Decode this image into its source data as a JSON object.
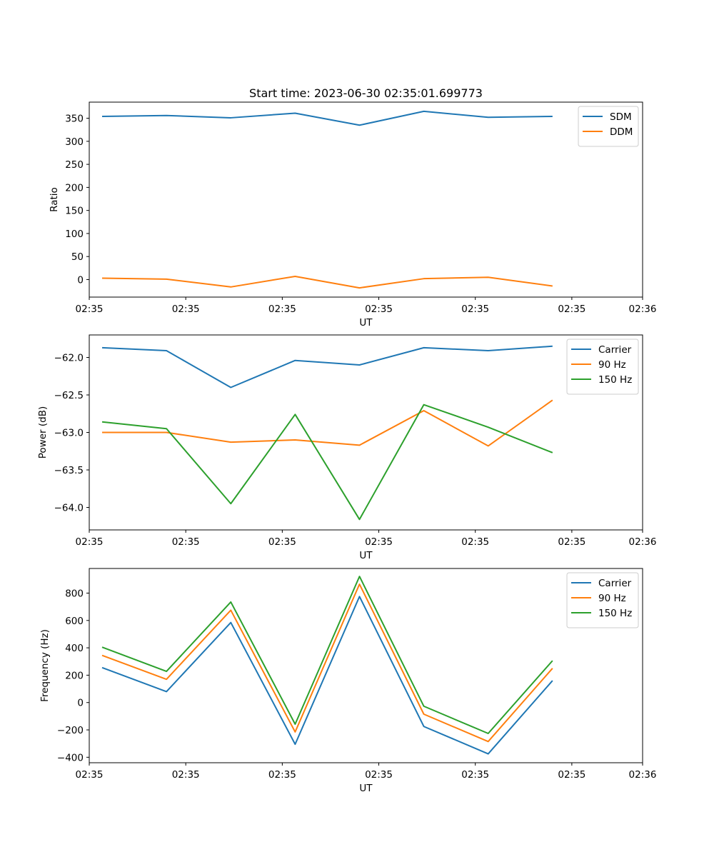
{
  "figure": {
    "title": "Start time: 2023-06-30 02:35:01.699773"
  },
  "chart_data": [
    {
      "type": "line",
      "xlabel": "UT",
      "ylabel": "Ratio",
      "x": [
        1,
        2,
        3,
        4,
        5,
        6,
        7,
        8
      ],
      "xlim": [
        0.8,
        9.4
      ],
      "xticks": [
        0.8,
        2.3,
        3.8,
        5.3,
        6.8,
        8.3,
        9.4
      ],
      "xtick_labels": [
        "02:35",
        "02:35",
        "02:35",
        "02:35",
        "02:35",
        "02:35",
        "02:36"
      ],
      "ylim": [
        -38,
        385
      ],
      "yticks": [
        0,
        50,
        100,
        150,
        200,
        250,
        300,
        350
      ],
      "ytick_labels": [
        "0",
        "50",
        "100",
        "150",
        "200",
        "250",
        "300",
        "350"
      ],
      "legend": "top-right",
      "grid": false,
      "series": [
        {
          "name": "SDM",
          "color": "#1f77b4",
          "values": [
            354,
            356,
            351,
            361,
            335,
            365,
            352,
            354
          ]
        },
        {
          "name": "DDM",
          "color": "#ff7f0e",
          "values": [
            3,
            1,
            -16,
            7,
            -18,
            2,
            5,
            -14
          ]
        }
      ]
    },
    {
      "type": "line",
      "xlabel": "UT",
      "ylabel": "Power (dB)",
      "x": [
        1,
        2,
        3,
        4,
        5,
        6,
        7,
        8
      ],
      "xlim": [
        0.8,
        9.4
      ],
      "xticks": [
        0.8,
        2.3,
        3.8,
        5.3,
        6.8,
        8.3,
        9.4
      ],
      "xtick_labels": [
        "02:35",
        "02:35",
        "02:35",
        "02:35",
        "02:35",
        "02:35",
        "02:36"
      ],
      "ylim": [
        -64.3,
        -61.7
      ],
      "yticks": [
        -64.0,
        -63.5,
        -63.0,
        -62.5,
        -62.0
      ],
      "ytick_labels": [
        "−64.0",
        "−63.5",
        "−63.0",
        "−62.5",
        "−62.0"
      ],
      "legend": "top-right",
      "grid": false,
      "series": [
        {
          "name": "Carrier",
          "color": "#1f77b4",
          "values": [
            -61.87,
            -61.91,
            -62.4,
            -62.04,
            -62.1,
            -61.87,
            -61.91,
            -61.85
          ]
        },
        {
          "name": "90 Hz",
          "color": "#ff7f0e",
          "values": [
            -63.0,
            -63.0,
            -63.13,
            -63.1,
            -63.17,
            -62.71,
            -63.18,
            -62.57
          ]
        },
        {
          "name": "150 Hz",
          "color": "#2ca02c",
          "values": [
            -62.86,
            -62.95,
            -63.95,
            -62.76,
            -64.16,
            -62.63,
            -62.93,
            -63.27
          ]
        }
      ]
    },
    {
      "type": "line",
      "xlabel": "UT",
      "ylabel": "Frequency (Hz)",
      "x": [
        1,
        2,
        3,
        4,
        5,
        6,
        7,
        8
      ],
      "xlim": [
        0.8,
        9.4
      ],
      "xticks": [
        0.8,
        2.3,
        3.8,
        5.3,
        6.8,
        8.3,
        9.4
      ],
      "xtick_labels": [
        "02:35",
        "02:35",
        "02:35",
        "02:35",
        "02:35",
        "02:35",
        "02:36"
      ],
      "ylim": [
        -440,
        980
      ],
      "yticks": [
        -400,
        -200,
        0,
        200,
        400,
        600,
        800
      ],
      "ytick_labels": [
        "−400",
        "−200",
        "0",
        "200",
        "400",
        "600",
        "800"
      ],
      "legend": "top-right",
      "grid": false,
      "series": [
        {
          "name": "Carrier",
          "color": "#1f77b4",
          "values": [
            255,
            80,
            585,
            -305,
            775,
            -175,
            -375,
            160
          ]
        },
        {
          "name": "90 Hz",
          "color": "#ff7f0e",
          "values": [
            345,
            170,
            675,
            -215,
            865,
            -85,
            -285,
            250
          ]
        },
        {
          "name": "150 Hz",
          "color": "#2ca02c",
          "values": [
            405,
            228,
            735,
            -158,
            922,
            -27,
            -226,
            306
          ]
        }
      ]
    }
  ]
}
